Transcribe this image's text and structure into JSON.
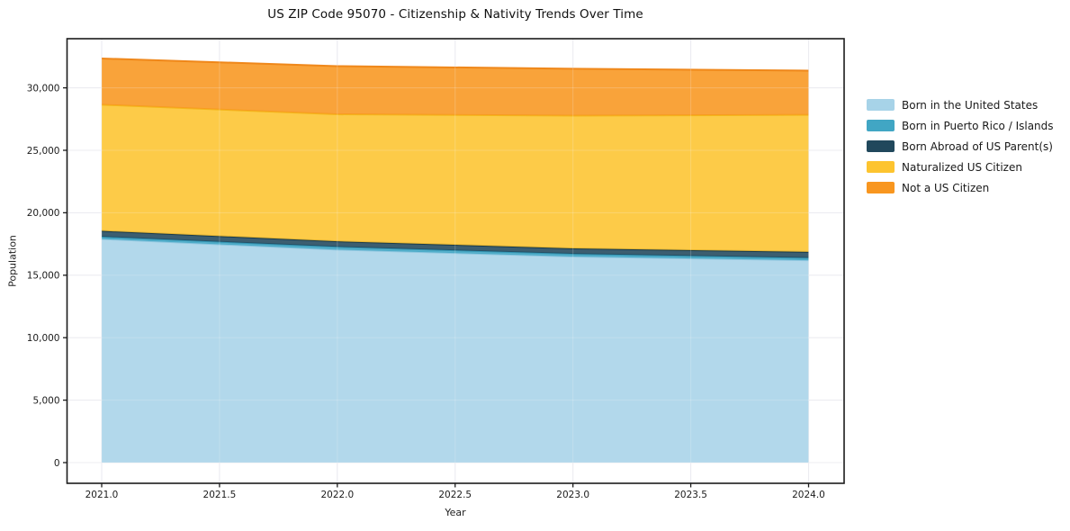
{
  "chart_data": {
    "type": "area",
    "stacked": true,
    "title": "US ZIP Code 95070 - Citizenship & Nativity Trends Over Time",
    "xlabel": "Year",
    "ylabel": "Population",
    "x": [
      2021,
      2022,
      2023,
      2024
    ],
    "series": [
      {
        "name": "Born in the United States",
        "color": "#a7d3e8",
        "edge": "#8cc5de",
        "values": [
          17900,
          17050,
          16500,
          16200
        ]
      },
      {
        "name": "Born in Puerto Rico / Islands",
        "color": "#41a6c4",
        "edge": "#3196b4",
        "values": [
          180,
          220,
          210,
          190
        ]
      },
      {
        "name": "Born Abroad of US Parent(s)",
        "color": "#21485c",
        "edge": "#17394a",
        "values": [
          470,
          440,
          440,
          480
        ]
      },
      {
        "name": "Naturalized US Citizen",
        "color": "#fdc42f",
        "edge": "#f3b51a",
        "values": [
          10100,
          10170,
          10620,
          10970
        ]
      },
      {
        "name": "Not a US Citizen",
        "color": "#f8961f",
        "edge": "#ee8414",
        "values": [
          3700,
          3860,
          3760,
          3540
        ]
      }
    ],
    "x_ticks": {
      "values": [
        2021.0,
        2021.5,
        2022.0,
        2022.5,
        2023.0,
        2023.5,
        2024.0
      ],
      "labels": [
        "2021.0",
        "2021.5",
        "2022.0",
        "2022.5",
        "2023.0",
        "2023.5",
        "2024.0"
      ]
    },
    "y_ticks": {
      "values": [
        0,
        5000,
        10000,
        15000,
        20000,
        25000,
        30000
      ],
      "labels": [
        "0",
        "5,000",
        "10,000",
        "15,000",
        "20,000",
        "25,000",
        "30,000"
      ]
    },
    "xlim": [
      2020.85,
      2024.15
    ],
    "ylim": [
      -1660,
      33930
    ],
    "grid": true,
    "legend_position": "right-outside",
    "background": "#ffffff",
    "grid_color": "#e8e8ee",
    "frame_color": "#1c1c1c"
  }
}
